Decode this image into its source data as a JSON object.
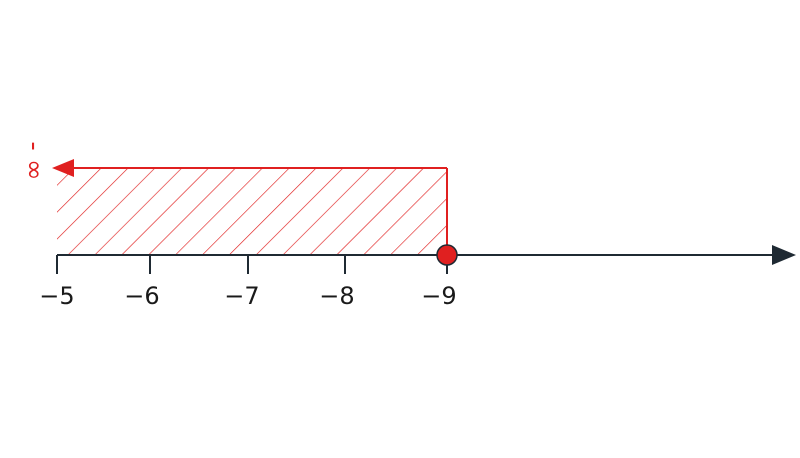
{
  "number_line": {
    "ticks": [
      {
        "label": "−5",
        "value": -5
      },
      {
        "label": "−6",
        "value": -6
      },
      {
        "label": "−7",
        "value": -7
      },
      {
        "label": "−8",
        "value": -8
      },
      {
        "label": "−9",
        "value": -9
      }
    ],
    "axis_color": "#1f2a33",
    "arrow_direction": "right"
  },
  "interval": {
    "boundary_value": -9,
    "boundary_point": "closed",
    "direction": "toward -5 (left)",
    "infinity_label": "- ∞",
    "color": "#e02020",
    "fill_pattern": "diagonal-hatch"
  }
}
